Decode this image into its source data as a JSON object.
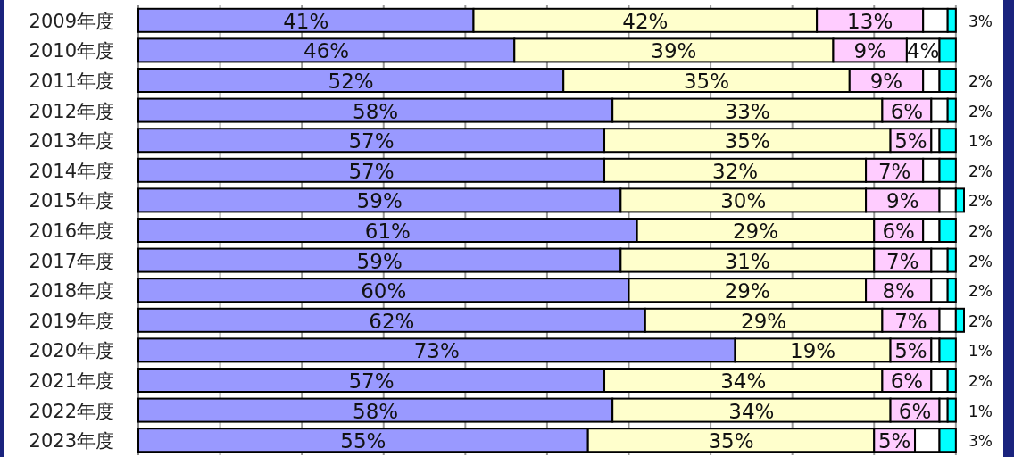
{
  "chart_data": {
    "type": "bar",
    "orientation": "horizontal",
    "stacked": true,
    "grid": "x",
    "tick_labels": "y",
    "xlim": [
      0,
      101
    ],
    "xticks": [
      {
        "value": 0,
        "label": null
      },
      {
        "value": 10,
        "label": null
      },
      {
        "value": 20,
        "label": null
      },
      {
        "value": 30,
        "label": null
      },
      {
        "value": 40,
        "label": null
      },
      {
        "value": 50,
        "label": null
      },
      {
        "value": 60,
        "label": null
      },
      {
        "value": 70,
        "label": null
      },
      {
        "value": 80,
        "label": null
      },
      {
        "value": 90,
        "label": null
      },
      {
        "value": 100,
        "label": null
      }
    ],
    "categories": [
      "2009年度",
      "2010年度",
      "2011年度",
      "2012年度",
      "2013年度",
      "2014年度",
      "2015年度",
      "2016年度",
      "2017年度",
      "2018年度",
      "2019年度",
      "2020年度",
      "2021年度",
      "2022年度",
      "2023年度"
    ],
    "series": [
      {
        "color": "#9999ff",
        "values": [
          41,
          46,
          52,
          58,
          57,
          57,
          59,
          61,
          59,
          60,
          62,
          73,
          57,
          58,
          55
        ],
        "value_labels": [
          "41%",
          "46%",
          "52%",
          "58%",
          "57%",
          "57%",
          "59%",
          "61%",
          "59%",
          "60%",
          "62%",
          "73%",
          "57%",
          "58%",
          "55%"
        ]
      },
      {
        "color": "#ffffcc",
        "values": [
          42,
          39,
          35,
          33,
          35,
          32,
          30,
          29,
          31,
          29,
          29,
          19,
          34,
          34,
          35
        ],
        "value_labels": [
          "42%",
          "39%",
          "35%",
          "33%",
          "35%",
          "32%",
          "30%",
          "29%",
          "31%",
          "29%",
          "29%",
          "19%",
          "34%",
          "34%",
          "35%"
        ]
      },
      {
        "color": "#ffccff",
        "values": [
          13,
          9,
          9,
          6,
          5,
          7,
          9,
          6,
          7,
          8,
          7,
          5,
          6,
          6,
          5
        ],
        "value_labels": [
          "13%",
          "9%",
          "9%",
          "6%",
          "5%",
          "7%",
          "9%",
          "6%",
          "7%",
          "8%",
          "7%",
          "5%",
          "6%",
          "6%",
          "5%"
        ]
      },
      {
        "color": "#ffffff",
        "values": [
          3,
          4,
          2,
          2,
          1,
          2,
          2,
          2,
          2,
          2,
          2,
          1,
          2,
          1,
          3
        ],
        "value_labels": [
          "3%",
          "4%",
          "2%",
          "2%",
          "1%",
          "2%",
          "2%",
          "2%",
          "2%",
          "2%",
          "2%",
          "1%",
          "2%",
          "1%",
          "3%"
        ]
      },
      {
        "color": "#00ffff",
        "values": [
          1,
          2,
          2,
          1,
          2,
          2,
          1,
          2,
          1,
          1,
          1,
          2,
          1,
          1,
          2
        ]
      }
    ]
  }
}
